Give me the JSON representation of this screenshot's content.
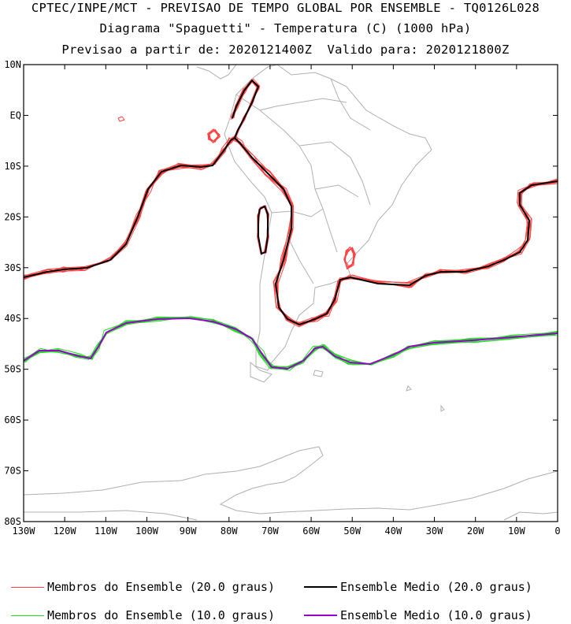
{
  "header": {
    "line1": "CPTEC/INPE/MCT - PREVISAO DE TEMPO GLOBAL POR ENSEMBLE - TQ0126L028",
    "line2": "Diagrama \"Spaguetti\" - Temperatura (C) (1000 hPa)",
    "line3": "Previsao a partir de: 2020121400Z  Valido para: 2020121800Z"
  },
  "axes": {
    "y_ticks": [
      "10N",
      "EQ",
      "10S",
      "20S",
      "30S",
      "40S",
      "50S",
      "60S",
      "70S",
      "80S"
    ],
    "x_ticks": [
      "130W",
      "120W",
      "110W",
      "100W",
      "90W",
      "80W",
      "70W",
      "60W",
      "50W",
      "40W",
      "30W",
      "20W",
      "10W",
      "0"
    ]
  },
  "legend": [
    {
      "label": "Membros do Ensemble (20.0 graus)",
      "color": "#ff4444"
    },
    {
      "label": "Ensemble Medio (20.0 graus)",
      "color": "#000000"
    },
    {
      "label": "Membros do Ensemble (10.0 graus)",
      "color": "#22dd22"
    },
    {
      "label": "Ensemble Medio (10.0 graus)",
      "color": "#9900cc"
    }
  ],
  "colors": {
    "member20": "#ff4444",
    "mean20": "#000000",
    "member10": "#22dd22",
    "mean10": "#9900cc",
    "coastline": "#b0b0b0"
  }
}
